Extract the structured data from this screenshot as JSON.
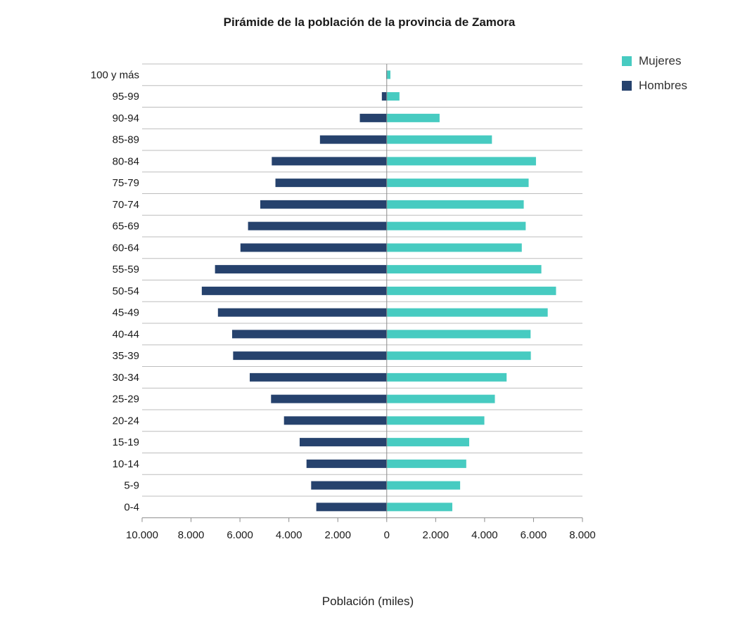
{
  "chart_data": {
    "type": "bar",
    "subtype": "population-pyramid",
    "title": "Pirámide de la población de la provincia de Zamora",
    "xlabel": "Población (miles)",
    "ylabel": "",
    "categories": [
      "100 y más",
      "95-99",
      "90-94",
      "85-89",
      "80-84",
      "75-79",
      "70-74",
      "65-69",
      "60-64",
      "55-59",
      "50-54",
      "45-49",
      "40-44",
      "35-39",
      "30-34",
      "25-29",
      "20-24",
      "15-19",
      "10-14",
      "5-9",
      "0-4"
    ],
    "series": [
      {
        "name": "Mujeres",
        "color": "#47cbc1",
        "side": "right",
        "values": [
          150,
          520,
          2160,
          4300,
          6100,
          5800,
          5600,
          5680,
          5520,
          6320,
          6920,
          6580,
          5880,
          5890,
          4900,
          4420,
          3990,
          3370,
          3250,
          3000,
          2680
        ]
      },
      {
        "name": "Hombres",
        "color": "#26426d",
        "side": "left",
        "values": [
          20,
          200,
          1100,
          2730,
          4700,
          4550,
          5170,
          5670,
          5980,
          7020,
          7560,
          6900,
          6320,
          6280,
          5600,
          4730,
          4200,
          3560,
          3280,
          3090,
          2880
        ]
      }
    ],
    "xlim": [
      -10000,
      8000
    ],
    "xticks": [
      {
        "value": -10000,
        "label": "10.000"
      },
      {
        "value": -8000,
        "label": "8.000"
      },
      {
        "value": -6000,
        "label": "6.000"
      },
      {
        "value": -4000,
        "label": "4.000"
      },
      {
        "value": -2000,
        "label": "2.000"
      },
      {
        "value": 0,
        "label": "0"
      },
      {
        "value": 2000,
        "label": "2.000"
      },
      {
        "value": 4000,
        "label": "4.000"
      },
      {
        "value": 6000,
        "label": "6.000"
      },
      {
        "value": 8000,
        "label": "8.000"
      }
    ],
    "grid": true,
    "legend_position": "top-right"
  }
}
